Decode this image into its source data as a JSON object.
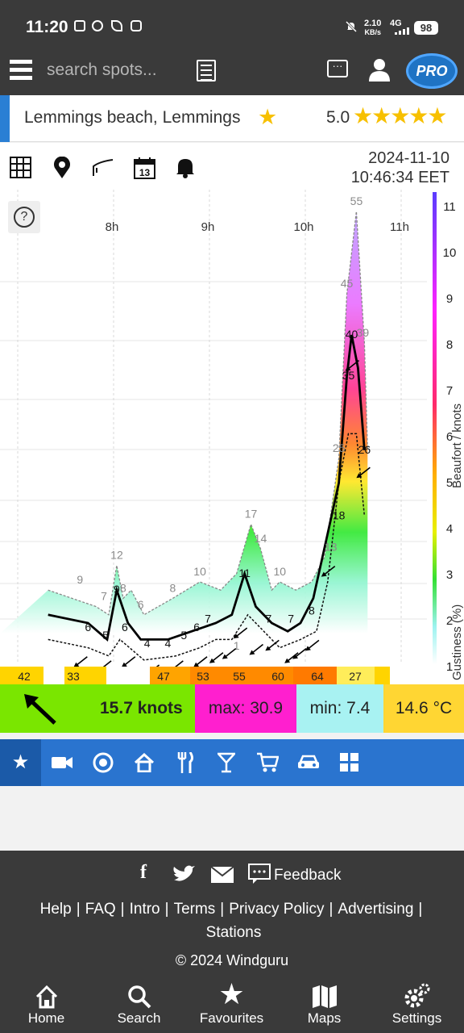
{
  "status_bar": {
    "time": "11:20",
    "speed_top": "2.10",
    "speed_bottom": "KB/s",
    "network": "4G",
    "battery": "98"
  },
  "header": {
    "search_placeholder": "search spots...",
    "pro_label": "PRO"
  },
  "spot": {
    "name": "Lemmings beach, Lemmings",
    "rating": "5.0"
  },
  "toolbar": {
    "calendar_day": "13",
    "date": "2024-11-10",
    "time": "10:46:34 EET",
    "help": "?"
  },
  "chart_data": {
    "type": "area",
    "x_tick_labels": [
      "8h",
      "9h",
      "10h",
      "11h"
    ],
    "y_right_label": "Beaufort / knots",
    "y_right_label2": "Gustiness (%)",
    "beaufort_ticks": [
      "11",
      "10",
      "9",
      "8",
      "7",
      "6",
      "5",
      "4",
      "3",
      "2",
      "1"
    ],
    "gust_labels": [
      {
        "t": "07:40",
        "v": "9"
      },
      {
        "t": "07:55",
        "v": "7"
      },
      {
        "t": "08:03",
        "v": "12"
      },
      {
        "t": "08:07",
        "v": "8"
      },
      {
        "t": "08:18",
        "v": "6"
      },
      {
        "t": "08:38",
        "v": "8"
      },
      {
        "t": "08:55",
        "v": "10"
      },
      {
        "t": "09:18",
        "v": "1"
      },
      {
        "t": "09:27",
        "v": "17"
      },
      {
        "t": "09:33",
        "v": "14"
      },
      {
        "t": "09:45",
        "v": "10"
      },
      {
        "t": "10:17",
        "v": "13"
      },
      {
        "t": "10:22",
        "v": "25"
      },
      {
        "t": "10:27",
        "v": "45"
      },
      {
        "t": "10:33",
        "v": "55"
      },
      {
        "t": "10:37",
        "v": "39"
      }
    ],
    "mean_labels": [
      {
        "t": "08:03",
        "v": "9"
      },
      {
        "t": "09:23",
        "v": "11"
      },
      {
        "t": "10:22",
        "v": "18"
      },
      {
        "t": "10:28",
        "v": "35"
      },
      {
        "t": "10:30",
        "v": "40"
      },
      {
        "t": "10:38",
        "v": "26"
      }
    ],
    "min_labels": [
      {
        "t": "07:45",
        "v": "6"
      },
      {
        "t": "07:56",
        "v": "5"
      },
      {
        "t": "08:08",
        "v": "6"
      },
      {
        "t": "08:22",
        "v": "4"
      },
      {
        "t": "08:35",
        "v": "4"
      },
      {
        "t": "08:45",
        "v": "5"
      },
      {
        "t": "08:53",
        "v": "6"
      },
      {
        "t": "09:00",
        "v": "7"
      },
      {
        "t": "09:38",
        "v": "7"
      },
      {
        "t": "09:52",
        "v": "7"
      },
      {
        "t": "10:05",
        "v": "8"
      }
    ],
    "gustiness_bands": [
      {
        "v": "42"
      },
      {
        "v": "33"
      },
      {
        "v": "47"
      },
      {
        "v": "53"
      },
      {
        "v": "55"
      },
      {
        "v": "60"
      },
      {
        "v": "64"
      },
      {
        "v": "27"
      }
    ]
  },
  "summary": {
    "wind_speed": "15.7 knots",
    "max": "max: 30.9",
    "min": "min: 7.4",
    "temperature": "14.6 °C"
  },
  "footer": {
    "feedback": "Feedback",
    "links": [
      "Help",
      "FAQ",
      "Intro",
      "Terms",
      "Privacy Policy",
      "Advertising",
      "Stations"
    ],
    "copyright": "© 2024 Windguru"
  },
  "bottom_nav": [
    {
      "label": "Home",
      "icon": "home-icon"
    },
    {
      "label": "Search",
      "icon": "search-icon"
    },
    {
      "label": "Favourites",
      "icon": "star-icon"
    },
    {
      "label": "Maps",
      "icon": "map-icon"
    },
    {
      "label": "Settings",
      "icon": "gear-icon"
    }
  ],
  "colors": {
    "accent": "#2a74cf",
    "dark": "#3a3a3a",
    "star": "#f7c000",
    "max": "#ff1fcf",
    "min": "#a8f2f2",
    "temp": "#ffd633",
    "speed": "#78e600"
  }
}
